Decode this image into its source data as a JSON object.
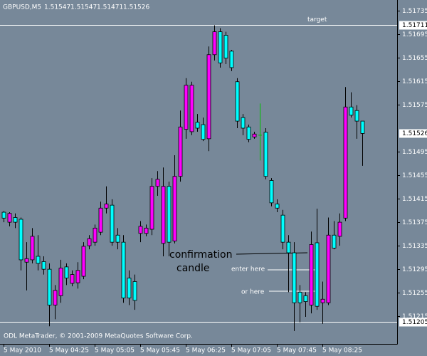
{
  "chart_data": {
    "type": "candlestick",
    "title": "GBPUSD,M5",
    "footer": "ODL MetaTrader, © 2001-2009 MetaQuotes Software Corp.",
    "categories": [
      "5 May 2010",
      null,
      null,
      null,
      null,
      null,
      null,
      null,
      "5 May 04:25",
      null,
      null,
      null,
      null,
      null,
      null,
      null,
      "5 May 05:05",
      null,
      null,
      null,
      null,
      null,
      null,
      null,
      "5 May 05:45",
      null,
      null,
      null,
      null,
      null,
      null,
      null,
      "5 May 06:25",
      null,
      null,
      null,
      null,
      null,
      null,
      null,
      "5 May 07:05",
      null,
      null,
      null,
      null,
      null,
      null,
      null,
      "5 May 07:45",
      null,
      null,
      null,
      null,
      null,
      null,
      null,
      "5 May 08:25",
      null,
      null,
      null,
      null,
      null,
      null,
      null
    ],
    "open": [
      1.51392,
      1.51375,
      1.51383,
      1.5138,
      1.51307,
      1.51311,
      1.51317,
      1.51308,
      1.51295,
      1.51234,
      1.5125,
      1.51299,
      1.51271,
      1.51272,
      1.51283,
      1.51335,
      1.51341,
      1.51358,
      1.51399,
      1.51404,
      1.51353,
      1.51341,
      1.5128,
      1.51274,
      1.51356,
      1.51356,
      1.51363,
      1.51436,
      1.51339,
      1.51436,
      1.51343,
      1.51453,
      1.51533,
      1.51529,
      1.51545,
      1.51541,
      1.51517,
      1.5166,
      1.51699,
      1.51693,
      1.51666,
      1.51614,
      1.51553,
      1.51537,
      1.5152,
      1.51523,
      1.51528,
      1.51446,
      1.51406,
      1.51387,
      1.51341,
      1.51323,
      1.51256,
      1.5125,
      1.51234,
      1.5134,
      1.51238,
      1.51238,
      1.51353,
      1.51351,
      1.51382,
      1.51571,
      1.51565,
      1.51547
    ],
    "high": [
      1.51394,
      1.51392,
      1.5139,
      1.51383,
      1.51341,
      1.51365,
      1.51353,
      1.51317,
      1.51305,
      1.51268,
      1.51311,
      1.51305,
      1.51293,
      1.51307,
      1.51341,
      1.51353,
      1.51371,
      1.5141,
      1.51436,
      1.51414,
      1.51365,
      1.51353,
      1.51293,
      1.51286,
      1.51377,
      1.51371,
      1.5145,
      1.51462,
      1.51468,
      1.51444,
      1.51489,
      1.51565,
      1.5162,
      1.51614,
      1.51559,
      1.51553,
      1.51674,
      1.5171,
      1.51705,
      1.51699,
      1.51668,
      1.5162,
      1.51559,
      1.51541,
      1.51529,
      1.51577,
      1.51535,
      1.5145,
      1.51414,
      1.51396,
      1.51353,
      1.51341,
      1.51268,
      1.51256,
      1.51359,
      1.51398,
      1.51274,
      1.51383,
      1.51377,
      1.5139,
      1.51605,
      1.51596,
      1.51574,
      1.51547
    ],
    "low": [
      1.51375,
      1.51368,
      1.51365,
      1.51293,
      1.51259,
      1.51305,
      1.51293,
      1.51286,
      1.51198,
      1.5121,
      1.51238,
      1.51268,
      1.51266,
      1.51262,
      1.51278,
      1.51329,
      1.51335,
      1.51353,
      1.5139,
      1.51335,
      1.51329,
      1.51238,
      1.51234,
      1.51226,
      1.51341,
      1.51351,
      1.51353,
      1.5142,
      1.51317,
      1.51317,
      1.51339,
      1.51444,
      1.51517,
      1.51523,
      1.51529,
      1.51513,
      1.51496,
      1.5165,
      1.51638,
      1.51644,
      1.51632,
      1.51535,
      1.51523,
      1.51511,
      1.51517,
      1.5148,
      1.51448,
      1.51402,
      1.51392,
      1.51329,
      1.51256,
      1.5119,
      1.51205,
      1.51214,
      1.5122,
      1.51226,
      1.51202,
      1.51234,
      1.51329,
      1.51335,
      1.51377,
      1.51553,
      1.51517,
      1.51471
    ],
    "close": [
      1.51382,
      1.5139,
      1.51375,
      1.51311,
      1.51313,
      1.51351,
      1.51305,
      1.51295,
      1.51234,
      1.51259,
      1.51297,
      1.5128,
      1.51286,
      1.51293,
      1.51334,
      1.51347,
      1.51365,
      1.51399,
      1.51406,
      1.51341,
      1.51341,
      1.51246,
      1.51246,
      1.51242,
      1.51368,
      1.51365,
      1.51436,
      1.51448,
      1.51436,
      1.51341,
      1.51453,
      1.51537,
      1.51608,
      1.51608,
      1.51535,
      1.51516,
      1.5166,
      1.51699,
      1.51646,
      1.51654,
      1.51638,
      1.51547,
      1.51535,
      1.51516,
      1.51525,
      1.51523,
      1.51453,
      1.51408,
      1.51399,
      1.51341,
      1.51323,
      1.51238,
      1.51238,
      1.5124,
      1.51337,
      1.51232,
      1.51244,
      1.51353,
      1.51331,
      1.51375,
      1.51571,
      1.51557,
      1.51547,
      1.51526
    ],
    "bull_color": "#ff00ff",
    "bear_color": "#00ffff",
    "doji_color": "#00c000",
    "ylim": [
      1.51168,
      1.51753
    ],
    "yticks": [
      1.51735,
      1.51695,
      1.51655,
      1.51615,
      1.51575,
      1.51495,
      1.51455,
      1.51415,
      1.51375,
      1.51335,
      1.51295,
      1.51255,
      1.51215
    ],
    "levels": [
      {
        "value": 1.51711,
        "name": "target"
      },
      {
        "value": 1.51205
      }
    ],
    "annotations": [
      {
        "lines": [
          "confirmation",
          "candle"
        ]
      },
      {
        "lines": [
          "enter here"
        ]
      },
      {
        "lines": [
          "or here"
        ]
      }
    ]
  }
}
